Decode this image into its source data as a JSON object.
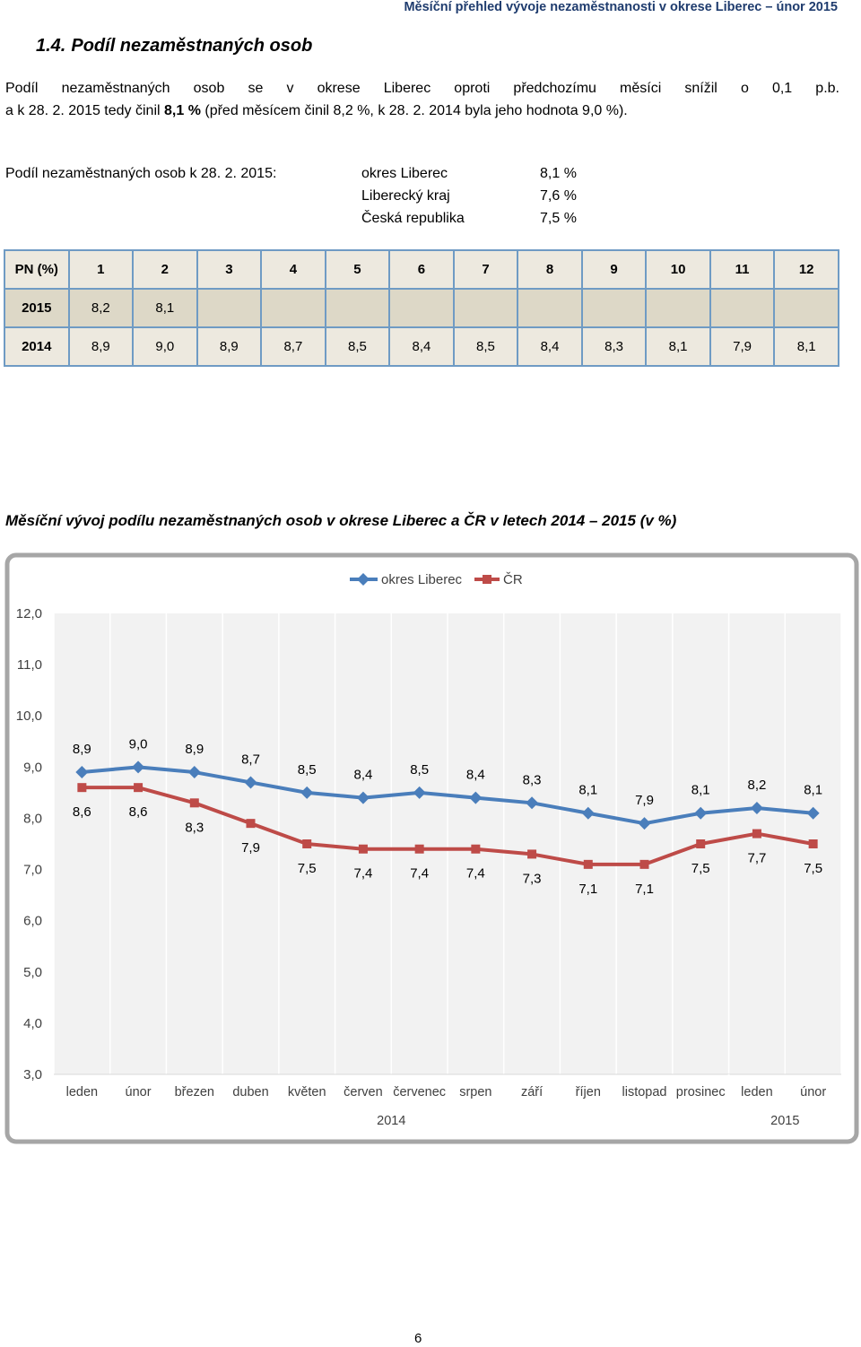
{
  "header": {
    "title": "Měsíční přehled vývoje nezaměstnanosti v okrese Liberec – únor 2015"
  },
  "section": {
    "number": "1.4.",
    "title": "Podíl nezaměstnaných osob"
  },
  "intro": {
    "line1": "Podíl nezaměstnaných osob se v okrese Liberec oproti předchozímu měsíci snížil o 0,1 p.b.",
    "line2_pre": "a k 28. 2. 2015 tedy činil ",
    "line2_bold": "8,1 %",
    "line2_post": " (před měsícem činil 8,2 %, k 28. 2. 2014 byla jeho hodnota 9,0 %)."
  },
  "summary": {
    "label": "Podíl nezaměstnaných osob k 28. 2. 2015:",
    "rows": [
      {
        "name": "okres Liberec",
        "value": "8,1 %"
      },
      {
        "name": "Liberecký kraj",
        "value": "7,6 %"
      },
      {
        "name": "Česká republika",
        "value": "7,5 %"
      }
    ]
  },
  "table": {
    "header": [
      "PN (%)",
      "1",
      "2",
      "3",
      "4",
      "5",
      "6",
      "7",
      "8",
      "9",
      "10",
      "11",
      "12"
    ],
    "rows": [
      [
        "2015",
        "8,2",
        "8,1",
        "",
        "",
        "",
        "",
        "",
        "",
        "",
        "",
        "",
        ""
      ],
      [
        "2014",
        "8,9",
        "9,0",
        "8,9",
        "8,7",
        "8,5",
        "8,4",
        "8,5",
        "8,4",
        "8,3",
        "8,1",
        "7,9",
        "8,1"
      ]
    ]
  },
  "chart_caption": "Měsíční vývoj podílu nezaměstnaných osob v okrese Liberec a ČR v letech 2014 – 2015 (v %)",
  "chart_data": {
    "type": "line",
    "categories": [
      "leden",
      "únor",
      "březen",
      "duben",
      "květen",
      "červen",
      "červenec",
      "srpen",
      "září",
      "říjen",
      "listopad",
      "prosinec",
      "leden",
      "únor"
    ],
    "year_labels": [
      {
        "label": "2014",
        "from": 0,
        "to": 11
      },
      {
        "label": "2015",
        "from": 12,
        "to": 13
      }
    ],
    "series": [
      {
        "name": "okres Liberec",
        "color": "#4a7ebb",
        "marker": "diamond",
        "values": [
          8.9,
          9.0,
          8.9,
          8.7,
          8.5,
          8.4,
          8.5,
          8.4,
          8.3,
          8.1,
          7.9,
          8.1,
          8.2,
          8.1
        ],
        "labels": [
          "8,9",
          "9,0",
          "8,9",
          "8,7",
          "8,5",
          "8,4",
          "8,5",
          "8,4",
          "8,3",
          "8,1",
          "7,9",
          "8,1",
          "8,2",
          "8,1"
        ]
      },
      {
        "name": "ČR",
        "color": "#be4b48",
        "marker": "square",
        "values": [
          8.6,
          8.6,
          8.3,
          7.9,
          7.5,
          7.4,
          7.4,
          7.4,
          7.3,
          7.1,
          7.1,
          7.5,
          7.7,
          7.5
        ],
        "labels": [
          "8,6",
          "8,6",
          "8,3",
          "7,9",
          "7,5",
          "7,4",
          "7,4",
          "7,4",
          "7,3",
          "7,1",
          "7,1",
          "7,5",
          "7,7",
          "7,5"
        ]
      }
    ],
    "y_ticks": [
      "3,0",
      "4,0",
      "5,0",
      "6,0",
      "7,0",
      "8,0",
      "9,0",
      "10,0",
      "11,0",
      "12,0"
    ],
    "ylim": [
      3,
      12
    ],
    "grid": false,
    "legend": "top-center"
  },
  "page_number": "6"
}
